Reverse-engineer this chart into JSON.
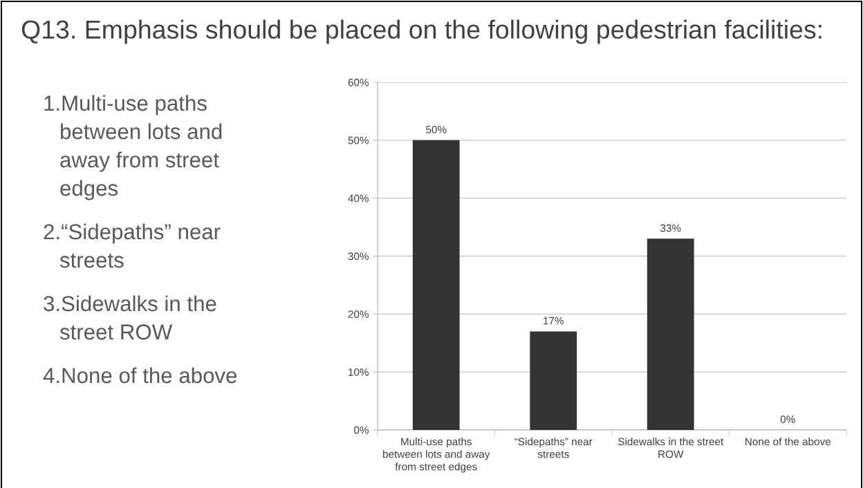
{
  "chart_data": {
    "type": "bar",
    "title": "Q13. Emphasis should be placed on the following pedestrian facilities:",
    "categories": [
      "Multi-use paths\nbetween lots and away\nfrom street edges",
      "“Sidepaths” near\nstreets",
      "Sidewalks in the street\nROW",
      "None of the above"
    ],
    "values": [
      50,
      17,
      33,
      0
    ],
    "value_labels": [
      "50%",
      "17%",
      "33%",
      "0%"
    ],
    "color": "#333333",
    "ylim": [
      0,
      60
    ],
    "yticks": [
      {
        "value": 0,
        "label": "0%"
      },
      {
        "value": 10,
        "label": "10%"
      },
      {
        "value": 20,
        "label": "20%"
      },
      {
        "value": 30,
        "label": "30%"
      },
      {
        "value": 40,
        "label": "40%"
      },
      {
        "value": 50,
        "label": "50%"
      },
      {
        "value": 60,
        "label": "60%"
      }
    ],
    "grid": "y",
    "annotations": [
      "1.Multi-use paths\nbetween lots and\naway from street\nedges",
      "2.“Sidepaths” near\nstreets",
      "3.Sidewalks in the\nstreet ROW",
      "4.None of the above"
    ]
  }
}
